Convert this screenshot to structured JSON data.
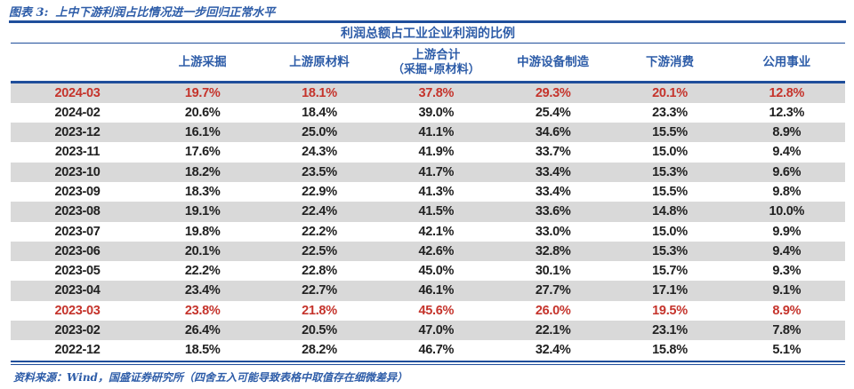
{
  "figure": {
    "label": "图表 3:",
    "title": "上中下游利润占比情况进一步回归正常水平"
  },
  "table": {
    "subtitle": "利润总额占工业企业利润的比例",
    "columns": [
      {
        "label": ""
      },
      {
        "label": "上游采掘"
      },
      {
        "label": "上游原材料"
      },
      {
        "label": "上游合计",
        "sublabel": "（采掘+原材料）"
      },
      {
        "label": "中游设备制造"
      },
      {
        "label": "下游消费"
      },
      {
        "label": "公用事业"
      }
    ],
    "rows": [
      {
        "period": "2024-03",
        "values": [
          "19.7%",
          "18.1%",
          "37.8%",
          "29.3%",
          "20.1%",
          "12.8%"
        ],
        "highlight": true
      },
      {
        "period": "2024-02",
        "values": [
          "20.6%",
          "18.4%",
          "39.0%",
          "25.4%",
          "23.3%",
          "12.3%"
        ],
        "highlight": false
      },
      {
        "period": "2023-12",
        "values": [
          "16.1%",
          "25.0%",
          "41.1%",
          "34.6%",
          "15.5%",
          "8.9%"
        ],
        "highlight": false
      },
      {
        "period": "2023-11",
        "values": [
          "17.6%",
          "24.3%",
          "41.9%",
          "33.7%",
          "15.0%",
          "9.4%"
        ],
        "highlight": false
      },
      {
        "period": "2023-10",
        "values": [
          "18.2%",
          "23.5%",
          "41.7%",
          "33.4%",
          "15.3%",
          "9.6%"
        ],
        "highlight": false
      },
      {
        "period": "2023-09",
        "values": [
          "18.3%",
          "22.9%",
          "41.3%",
          "33.4%",
          "15.5%",
          "9.8%"
        ],
        "highlight": false
      },
      {
        "period": "2023-08",
        "values": [
          "19.1%",
          "22.4%",
          "41.5%",
          "33.6%",
          "14.8%",
          "10.0%"
        ],
        "highlight": false
      },
      {
        "period": "2023-07",
        "values": [
          "19.8%",
          "22.2%",
          "42.1%",
          "33.0%",
          "15.0%",
          "9.9%"
        ],
        "highlight": false
      },
      {
        "period": "2023-06",
        "values": [
          "20.1%",
          "22.5%",
          "42.6%",
          "32.8%",
          "15.3%",
          "9.4%"
        ],
        "highlight": false
      },
      {
        "period": "2023-05",
        "values": [
          "22.2%",
          "22.8%",
          "45.0%",
          "30.1%",
          "15.7%",
          "9.3%"
        ],
        "highlight": false
      },
      {
        "period": "2023-04",
        "values": [
          "23.4%",
          "22.7%",
          "46.1%",
          "27.7%",
          "17.1%",
          "9.1%"
        ],
        "highlight": false
      },
      {
        "period": "2023-03",
        "values": [
          "23.8%",
          "21.8%",
          "45.6%",
          "26.0%",
          "19.5%",
          "8.9%"
        ],
        "highlight": true
      },
      {
        "period": "2023-02",
        "values": [
          "26.4%",
          "20.5%",
          "47.0%",
          "22.1%",
          "23.1%",
          "7.8%"
        ],
        "highlight": false
      },
      {
        "period": "2022-12",
        "values": [
          "18.5%",
          "28.2%",
          "46.7%",
          "32.4%",
          "15.8%",
          "5.1%"
        ],
        "highlight": false
      }
    ]
  },
  "footer": {
    "source_note": "资料来源：Wind，国盛证券研究所（四舍五入可能导致表格中取值存在细微差异）"
  },
  "colors": {
    "accent_navy": "#1F4E9B",
    "header_text_blue": "#2D5CA8",
    "highlight_red": "#C5332B",
    "stripe_gray": "#D9D9D9"
  }
}
